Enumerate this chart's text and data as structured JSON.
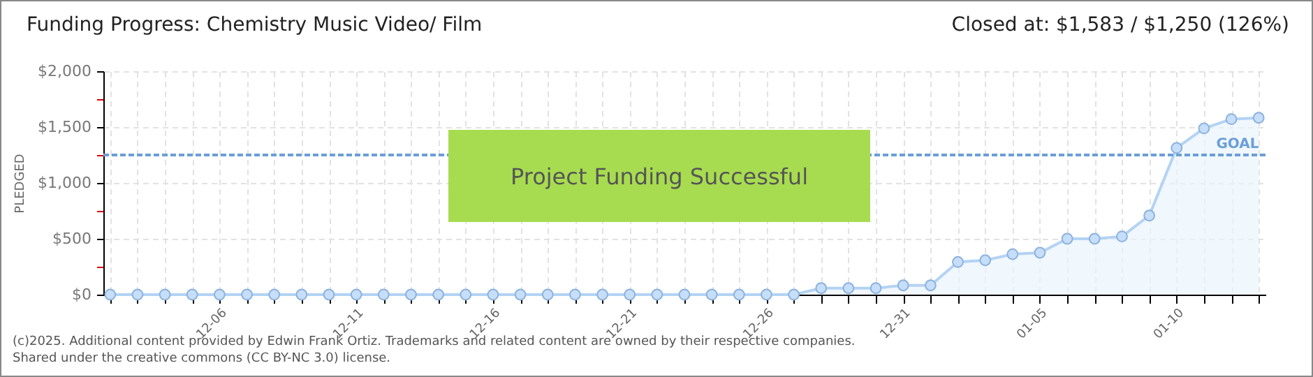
{
  "chart_data": {
    "type": "area",
    "title": "Funding Progress: Chemistry Music Video/ Film",
    "subtitle": "Closed at:  $1,583 /  $1,250 (126%)",
    "ylabel": "PLEDGED",
    "categories": [
      null,
      null,
      null,
      null,
      "12-06",
      null,
      null,
      null,
      null,
      "12-11",
      null,
      null,
      null,
      null,
      "12-16",
      null,
      null,
      null,
      null,
      "12-21",
      null,
      null,
      null,
      null,
      "12-26",
      null,
      null,
      null,
      null,
      "12-31",
      null,
      null,
      null,
      null,
      "01-05",
      null,
      null,
      null,
      null,
      "01-10",
      null,
      null,
      null
    ],
    "series": [
      {
        "color": "#b3d3f3",
        "values": [
          0,
          0,
          0,
          0,
          0,
          0,
          0,
          0,
          0,
          0,
          0,
          0,
          0,
          0,
          0,
          0,
          0,
          0,
          0,
          0,
          0,
          0,
          0,
          0,
          0,
          0,
          58,
          58,
          58,
          83,
          83,
          292,
          308,
          362,
          375,
          500,
          500,
          521,
          708,
          1313,
          1488,
          1571,
          1583
        ]
      }
    ],
    "ylim": [
      0,
      2000
    ],
    "yticks": [
      {
        "value": 0,
        "label": "$0"
      },
      {
        "value": 250,
        "label": null
      },
      {
        "value": 500,
        "label": "$500"
      },
      {
        "value": 750,
        "label": null
      },
      {
        "value": 1000,
        "label": "$1,000"
      },
      {
        "value": 1250,
        "label": null
      },
      {
        "value": 1500,
        "label": "$1,500"
      },
      {
        "value": 1750,
        "label": null
      },
      {
        "value": 2000,
        "label": "$2,000"
      }
    ],
    "grid": true,
    "legend": false,
    "marker": "circle",
    "line_style": "solid",
    "ref_lines": [
      {
        "axis": "y",
        "value": 1250,
        "label": "GOAL",
        "color": "#6a9fd8",
        "line_style": "dashed"
      }
    ],
    "annotations": [
      "Project Funding Successful",
      "(c)2025. Additional content provided by Edwin Frank Ortiz. Trademarks and related content are owned by their respective companies.",
      "Shared under the creative commons (CC BY-NC 3.0) license."
    ]
  }
}
